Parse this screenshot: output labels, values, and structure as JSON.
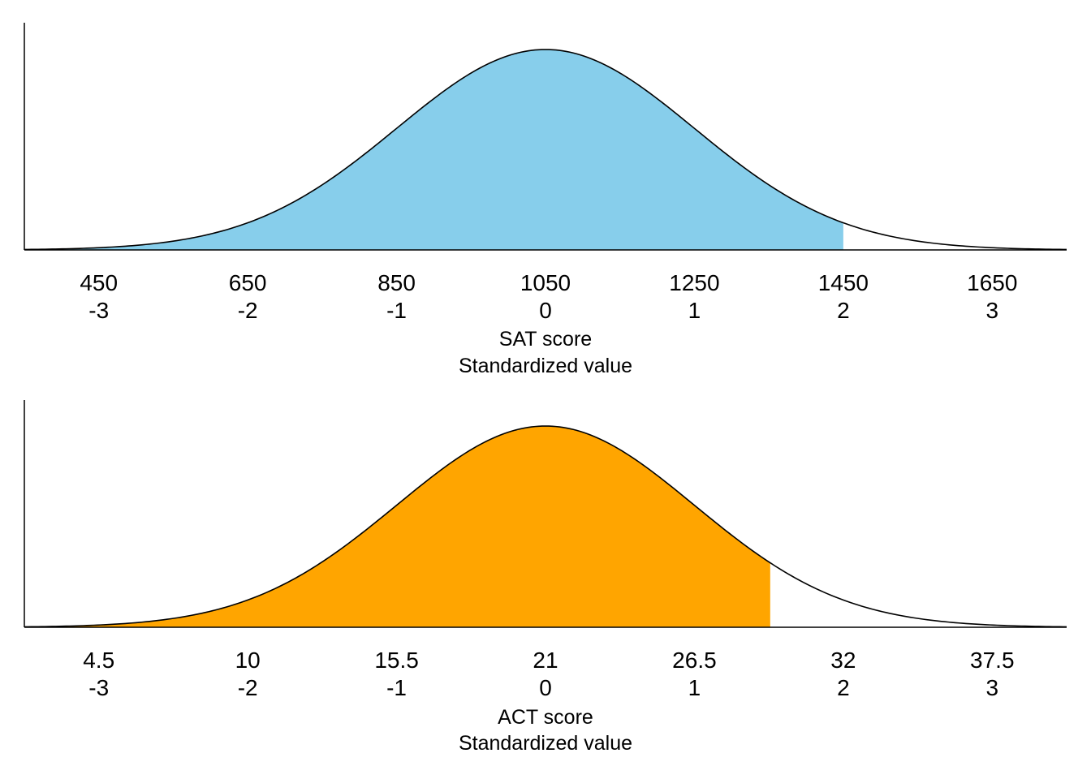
{
  "chart_data": [
    {
      "type": "area",
      "title": "",
      "distribution": "normal",
      "mean": 1050,
      "sd": 200,
      "xlim": [
        350,
        1750
      ],
      "shade_range": [
        350,
        1450
      ],
      "fill_color": "#87CEEB",
      "ticks": [
        450,
        650,
        850,
        1050,
        1250,
        1450,
        1650
      ],
      "tick_labels": [
        "450",
        "650",
        "850",
        "1050",
        "1250",
        "1450",
        "1650"
      ],
      "z_labels": [
        "-3",
        "-2",
        "-1",
        "0",
        "1",
        "2",
        "3"
      ],
      "xlabel": "SAT score",
      "xlabel2": "Standardized value",
      "ylabel": ""
    },
    {
      "type": "area",
      "title": "",
      "distribution": "normal",
      "mean": 21,
      "sd": 5.5,
      "xlim": [
        1.75,
        40.25
      ],
      "shade_range": [
        1.75,
        29.3
      ],
      "fill_color": "#FFA500",
      "ticks": [
        4.5,
        10,
        15.5,
        21,
        26.5,
        32,
        37.5
      ],
      "tick_labels": [
        "4.5",
        "10",
        "15.5",
        "21",
        "26.5",
        "32",
        "37.5"
      ],
      "z_labels": [
        "-3",
        "-2",
        "-1",
        "0",
        "1",
        "2",
        "3"
      ],
      "xlabel": "ACT score",
      "xlabel2": "Standardized value",
      "ylabel": ""
    }
  ]
}
